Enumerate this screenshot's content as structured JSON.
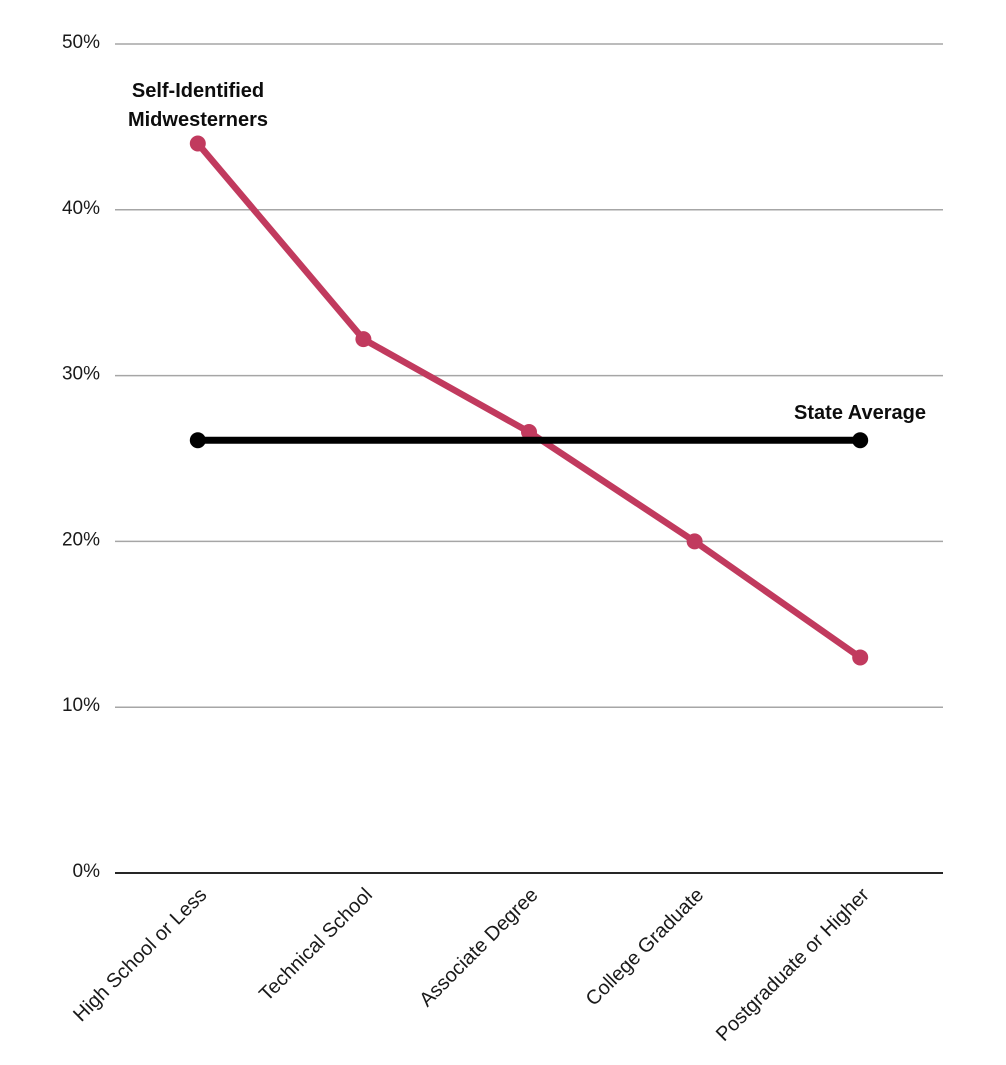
{
  "chart_data": {
    "type": "line",
    "title": "",
    "xlabel": "",
    "ylabel": "",
    "categories": [
      "High School or Less",
      "Technical School",
      "Associate Degree",
      "College Graduate",
      "Postgraduate or Higher"
    ],
    "series": [
      {
        "name": "Self-Identified Midwesterners",
        "values": [
          44,
          32.2,
          26.6,
          20,
          13
        ],
        "color": "#c13a5e",
        "marker": "circle"
      }
    ],
    "reference_line": {
      "name": "State Average",
      "value": 26.1,
      "color": "#000000",
      "end_markers": "circle"
    },
    "yticks": [
      0,
      10,
      20,
      30,
      40,
      50
    ],
    "ytick_labels": [
      "0%",
      "10%",
      "20%",
      "30%",
      "40%",
      "50%"
    ],
    "ylim": [
      0,
      52.7
    ],
    "grid": "horizontal",
    "legend": "inline-annotations",
    "x_label_rotation_deg": -45
  },
  "annotations": {
    "series_label": {
      "line1": "Self-Identified",
      "line2": "Midwesterners"
    },
    "average_label": "State Average"
  },
  "colors": {
    "series": "#c13a5e",
    "reference": "#000000",
    "gridline": "#a6a6a6",
    "axis_line": "#262626",
    "text": "#1a1a1a",
    "background": "#ffffff"
  }
}
